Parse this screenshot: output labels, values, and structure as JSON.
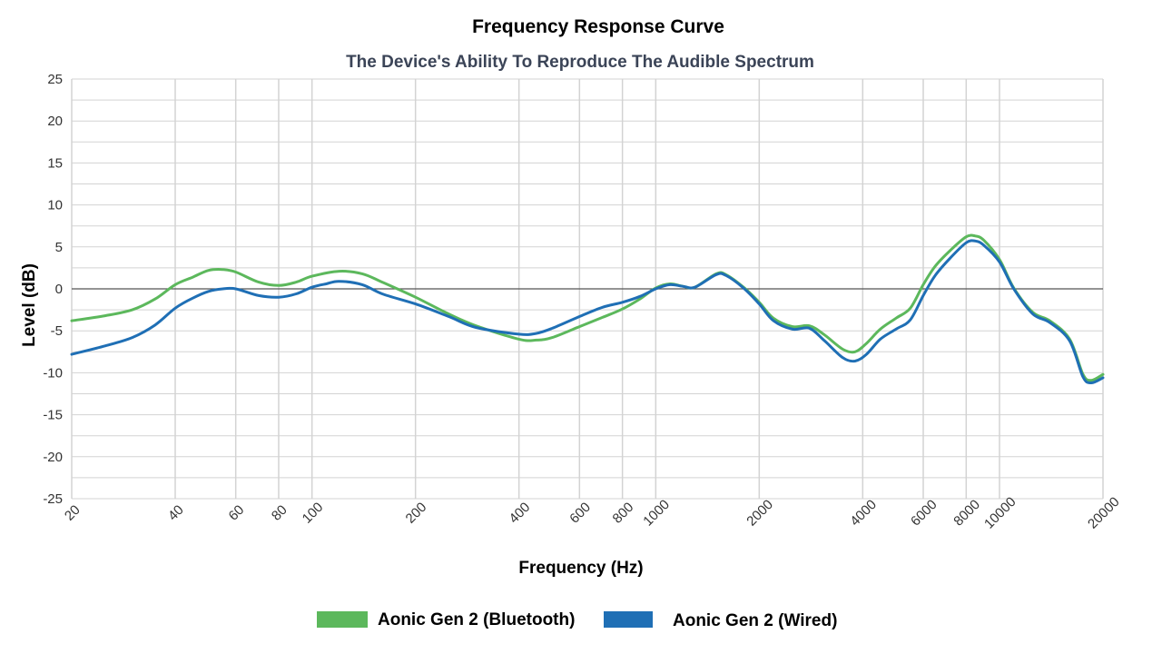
{
  "chart_data": {
    "type": "line",
    "title": "Frequency Response Curve",
    "subtitle": "The Device's Ability To Reproduce The Audible Spectrum",
    "xlabel": "Frequency (Hz)",
    "ylabel": "Level (dB)",
    "x_scale": "log",
    "xlim": [
      20,
      20000
    ],
    "ylim": [
      -25,
      25
    ],
    "x_ticks": [
      20,
      40,
      60,
      80,
      100,
      200,
      400,
      600,
      800,
      1000,
      2000,
      4000,
      6000,
      8000,
      10000,
      20000
    ],
    "y_ticks": [
      25,
      20,
      15,
      10,
      5,
      0,
      -5,
      -10,
      -15,
      -20,
      -25
    ],
    "grid": true,
    "legend_position": "bottom",
    "series": [
      {
        "name": "Aonic Gen 2 (Bluetooth)",
        "color": "#5cb85c",
        "points": [
          [
            20,
            -3.8
          ],
          [
            25,
            -3.2
          ],
          [
            30,
            -2.5
          ],
          [
            35,
            -1.2
          ],
          [
            40,
            0.5
          ],
          [
            45,
            1.4
          ],
          [
            50,
            2.2
          ],
          [
            55,
            2.3
          ],
          [
            60,
            2.0
          ],
          [
            70,
            0.8
          ],
          [
            80,
            0.4
          ],
          [
            90,
            0.8
          ],
          [
            100,
            1.5
          ],
          [
            120,
            2.1
          ],
          [
            140,
            1.8
          ],
          [
            160,
            0.8
          ],
          [
            200,
            -1.0
          ],
          [
            250,
            -3.0
          ],
          [
            300,
            -4.4
          ],
          [
            400,
            -6.0
          ],
          [
            450,
            -6.1
          ],
          [
            500,
            -5.8
          ],
          [
            600,
            -4.5
          ],
          [
            700,
            -3.4
          ],
          [
            800,
            -2.4
          ],
          [
            900,
            -1.2
          ],
          [
            1000,
            0.1
          ],
          [
            1100,
            0.6
          ],
          [
            1200,
            0.3
          ],
          [
            1300,
            0.2
          ],
          [
            1500,
            1.8
          ],
          [
            1600,
            1.7
          ],
          [
            1800,
            0.2
          ],
          [
            2000,
            -1.6
          ],
          [
            2200,
            -3.5
          ],
          [
            2500,
            -4.5
          ],
          [
            2800,
            -4.4
          ],
          [
            3100,
            -5.5
          ],
          [
            3500,
            -7.2
          ],
          [
            3800,
            -7.5
          ],
          [
            4100,
            -6.5
          ],
          [
            4500,
            -4.8
          ],
          [
            5000,
            -3.5
          ],
          [
            5500,
            -2.3
          ],
          [
            6000,
            0.5
          ],
          [
            6500,
            2.7
          ],
          [
            7200,
            4.6
          ],
          [
            8000,
            6.2
          ],
          [
            8500,
            6.3
          ],
          [
            9000,
            5.8
          ],
          [
            10000,
            3.5
          ],
          [
            11000,
            0.1
          ],
          [
            12500,
            -2.8
          ],
          [
            14000,
            -3.8
          ],
          [
            16000,
            -6.0
          ],
          [
            17500,
            -10.2
          ],
          [
            18500,
            -10.9
          ],
          [
            20000,
            -10.2
          ]
        ]
      },
      {
        "name": "Aonic Gen 2 (Wired)",
        "color": "#1f6fb5",
        "points": [
          [
            20,
            -7.8
          ],
          [
            25,
            -6.8
          ],
          [
            30,
            -5.8
          ],
          [
            35,
            -4.3
          ],
          [
            40,
            -2.3
          ],
          [
            45,
            -1.1
          ],
          [
            50,
            -0.3
          ],
          [
            55,
            0.0
          ],
          [
            60,
            0.0
          ],
          [
            70,
            -0.8
          ],
          [
            80,
            -1.0
          ],
          [
            90,
            -0.6
          ],
          [
            100,
            0.2
          ],
          [
            110,
            0.6
          ],
          [
            120,
            0.9
          ],
          [
            140,
            0.5
          ],
          [
            160,
            -0.6
          ],
          [
            200,
            -1.8
          ],
          [
            250,
            -3.3
          ],
          [
            300,
            -4.6
          ],
          [
            400,
            -5.4
          ],
          [
            450,
            -5.3
          ],
          [
            500,
            -4.7
          ],
          [
            600,
            -3.3
          ],
          [
            700,
            -2.2
          ],
          [
            800,
            -1.6
          ],
          [
            900,
            -0.9
          ],
          [
            1000,
            0.0
          ],
          [
            1100,
            0.5
          ],
          [
            1200,
            0.3
          ],
          [
            1300,
            0.2
          ],
          [
            1500,
            1.7
          ],
          [
            1600,
            1.6
          ],
          [
            1800,
            0.1
          ],
          [
            2000,
            -1.8
          ],
          [
            2200,
            -3.8
          ],
          [
            2500,
            -4.8
          ],
          [
            2800,
            -4.7
          ],
          [
            3100,
            -6.2
          ],
          [
            3500,
            -8.2
          ],
          [
            3800,
            -8.6
          ],
          [
            4100,
            -7.8
          ],
          [
            4500,
            -6.0
          ],
          [
            5000,
            -4.8
          ],
          [
            5500,
            -3.7
          ],
          [
            6000,
            -0.8
          ],
          [
            6500,
            1.6
          ],
          [
            7200,
            3.7
          ],
          [
            8000,
            5.5
          ],
          [
            8500,
            5.7
          ],
          [
            9000,
            5.2
          ],
          [
            10000,
            3.2
          ],
          [
            11000,
            0.0
          ],
          [
            12500,
            -3.0
          ],
          [
            14000,
            -4.0
          ],
          [
            16000,
            -6.2
          ],
          [
            17500,
            -10.5
          ],
          [
            18500,
            -11.2
          ],
          [
            20000,
            -10.6
          ]
        ]
      }
    ]
  },
  "colors": {
    "grid": "#d3d3d3",
    "zero_line": "#555555",
    "axis_text": "#333333"
  }
}
